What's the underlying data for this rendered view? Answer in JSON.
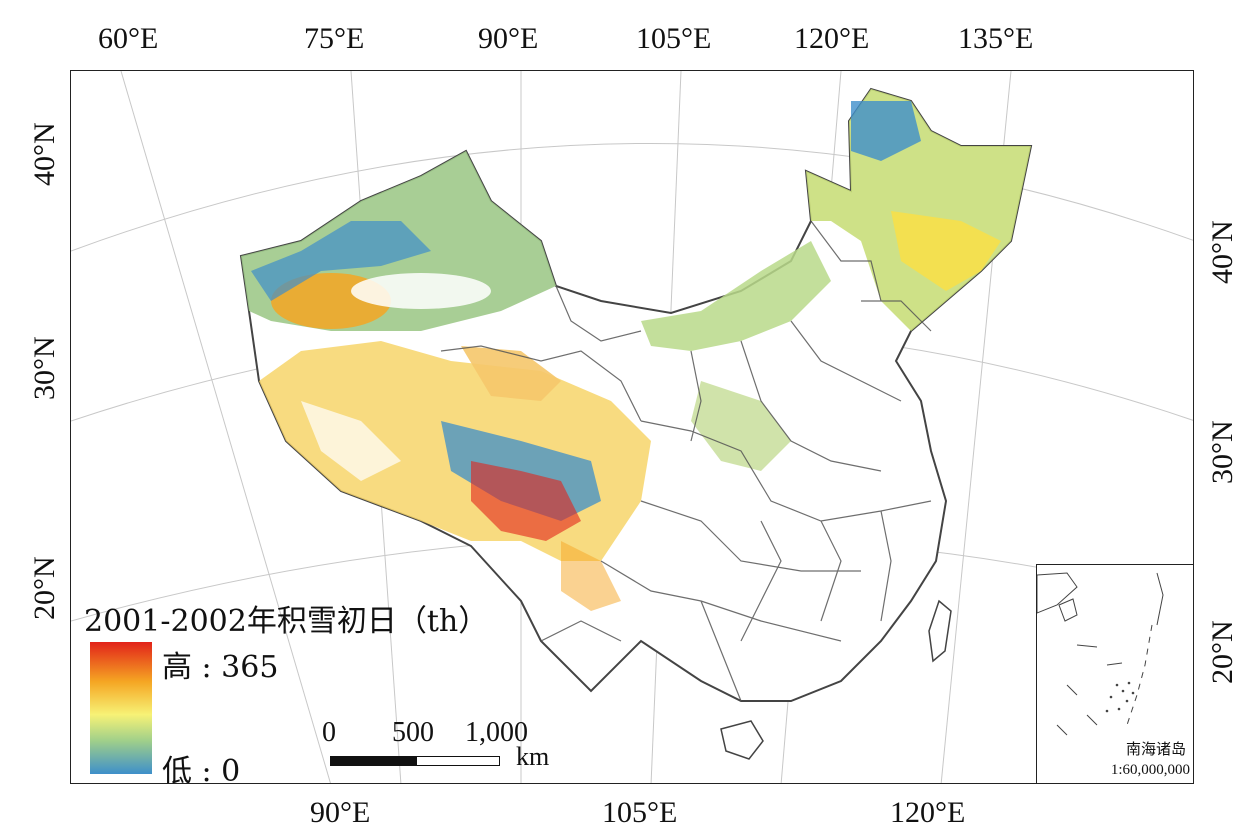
{
  "map": {
    "legend_title": "2001-2002年积雪初日（th）",
    "legend_high": "高 : 365",
    "legend_low": "低 : 0",
    "legend_colors": [
      "#e2231a",
      "#f5a623",
      "#f7f276",
      "#9fcf8a",
      "#3e8fca"
    ],
    "scale": {
      "ticks": [
        "0",
        "500",
        "1,000"
      ],
      "unit": "km"
    },
    "inset": {
      "title": "南海诸岛",
      "scale": "1:60,000,000"
    },
    "top_lon_labels": [
      "60°E",
      "75°E",
      "90°E",
      "105°E",
      "120°E",
      "135°E"
    ],
    "bottom_lon_labels": [
      "90°E",
      "105°E",
      "120°E"
    ],
    "left_lat_labels": [
      "40°N",
      "30°N",
      "20°N"
    ],
    "right_lat_labels": [
      "40°N",
      "30°N",
      "20°N"
    ]
  }
}
